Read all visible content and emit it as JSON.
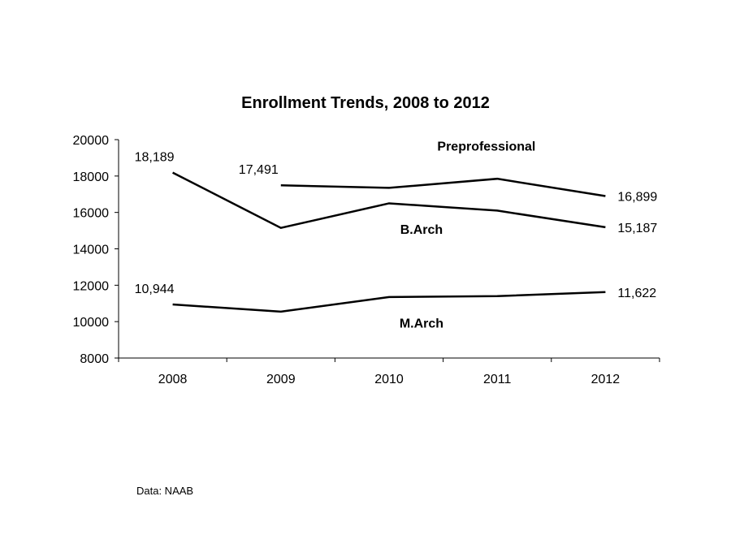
{
  "chart_data": {
    "type": "line",
    "title": "Enrollment Trends, 2008 to 2012",
    "xlabel": "",
    "ylabel": "",
    "categories": [
      "2008",
      "2009",
      "2010",
      "2011",
      "2012"
    ],
    "ylim": [
      8000,
      20000
    ],
    "yticks": [
      8000,
      10000,
      12000,
      14000,
      16000,
      18000,
      20000
    ],
    "grid": false,
    "legend": "none",
    "series": [
      {
        "name": "Preprofessional",
        "values": [
          null,
          17491,
          17350,
          17850,
          16899
        ],
        "color": "#000000"
      },
      {
        "name": "B.Arch",
        "values": [
          18189,
          15150,
          16500,
          16100,
          15187
        ],
        "color": "#000000"
      },
      {
        "name": "M.Arch",
        "values": [
          10944,
          10550,
          11350,
          11400,
          11622
        ],
        "color": "#000000"
      }
    ],
    "data_labels": [
      {
        "series": "B.Arch",
        "category": "2008",
        "text": "18,189"
      },
      {
        "series": "Preprofessional",
        "category": "2009",
        "text": "17,491"
      },
      {
        "series": "Preprofessional",
        "category": "2012",
        "text": "16,899"
      },
      {
        "series": "B.Arch",
        "category": "2012",
        "text": "15,187"
      },
      {
        "series": "M.Arch",
        "category": "2008",
        "text": "10,944"
      },
      {
        "series": "M.Arch",
        "category": "2012",
        "text": "11,622"
      }
    ],
    "source_note": "Data: NAAB"
  }
}
